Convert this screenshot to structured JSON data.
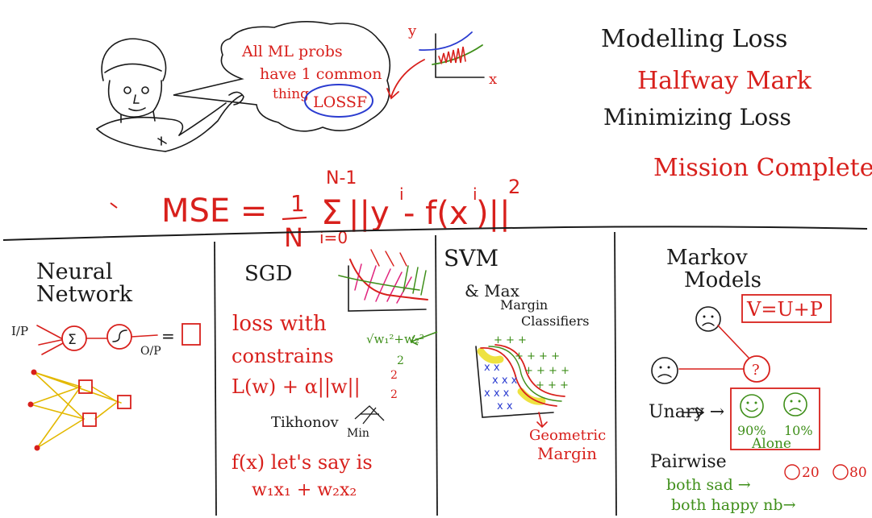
{
  "speech_bubble": {
    "line1": "All ML probs",
    "line2": "have 1 common",
    "line3": "thing",
    "circled": "LOSSF"
  },
  "mini_plot": {
    "y_label": "y",
    "x_label": "x"
  },
  "headings": {
    "modelling": "Modelling Loss",
    "halfway": "Halfway Mark",
    "minimizing": "Minimizing Loss",
    "complete": "Mission Complete!"
  },
  "mse": {
    "lhs": "MSE =",
    "frac_num": "1",
    "frac_den": "N",
    "sum_top": "N-1",
    "sum_bottom": "i=0",
    "body": "||y",
    "sup_i": "i",
    "minus": "- f(x",
    "sup_i2": "i",
    "close": ")||",
    "power": "2"
  },
  "neural": {
    "title1": "Neural",
    "title2": "Network",
    "ip": "I/P",
    "op": "O/P",
    "sigma": "Σ",
    "eq": "="
  },
  "sgd": {
    "title": "SGD",
    "line1": "loss with",
    "line2": "constrains",
    "line3": "L(w) + α||w||",
    "line3_sup": "2",
    "line3_sub": "2",
    "tikhonov": "Tikhonov",
    "min": "Min",
    "line4": "f(x) let's say is",
    "line5": "w₁x₁ + w₂x₂",
    "sqrt_note": "√w₁²+w₂²",
    "sqrt_sub": "2"
  },
  "svm": {
    "title": "SVM",
    "line2": "& Max",
    "line3": "Margin",
    "line4": "Classifiers",
    "geo1": "Geometric",
    "geo2": "Margin"
  },
  "markov": {
    "title1": "Markov",
    "title2": "Models",
    "formula": "V=U+P",
    "q": "?",
    "unary": "Unary →",
    "pct1": "90%",
    "pct2": "10%",
    "alone": "Alone",
    "pairwise": "Pairwise",
    "both_sad": "both sad →",
    "happy_val": "20",
    "sad_val": "80",
    "both_happy": "both happy nb→"
  }
}
